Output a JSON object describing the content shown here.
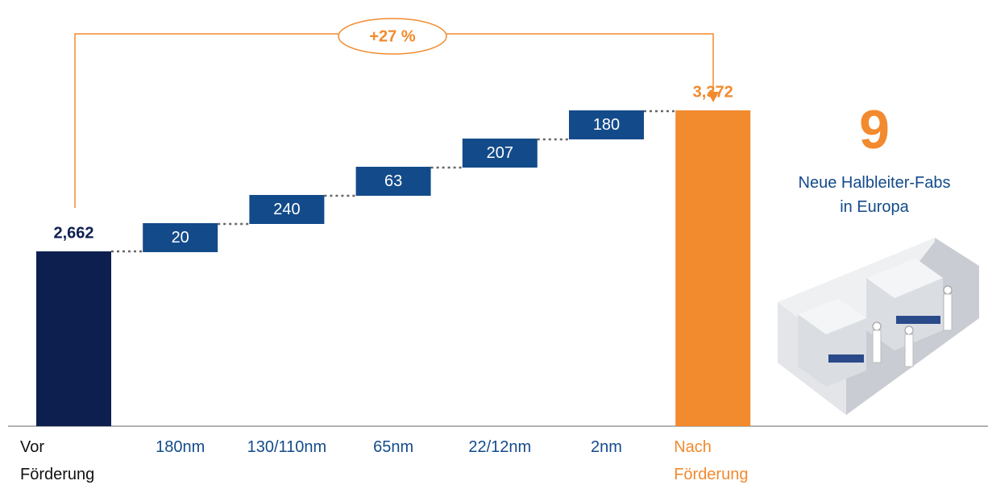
{
  "chart_data": {
    "type": "waterfall",
    "categories": [
      "Vor Förderung",
      "180nm",
      "130/110nm",
      "65nm",
      "22/12nm",
      "2nm",
      "Nach Förderung"
    ],
    "values": [
      2662,
      20,
      240,
      63,
      207,
      180,
      3372
    ],
    "value_labels": [
      "2,662",
      "20",
      "240",
      "63",
      "207",
      "180",
      "3,372"
    ],
    "colors": [
      "#0d1f4f",
      "#134b8a",
      "#134b8a",
      "#134b8a",
      "#134b8a",
      "#134b8a",
      "#f28a2e"
    ],
    "label_colors": [
      "#111111",
      "#134b8a",
      "#134b8a",
      "#134b8a",
      "#134b8a",
      "#134b8a",
      "#f28a2e"
    ],
    "annotation": "+27 %",
    "highlight": "9",
    "highlight_text": "Neue Halbleiter-Fabs in Europa"
  }
}
